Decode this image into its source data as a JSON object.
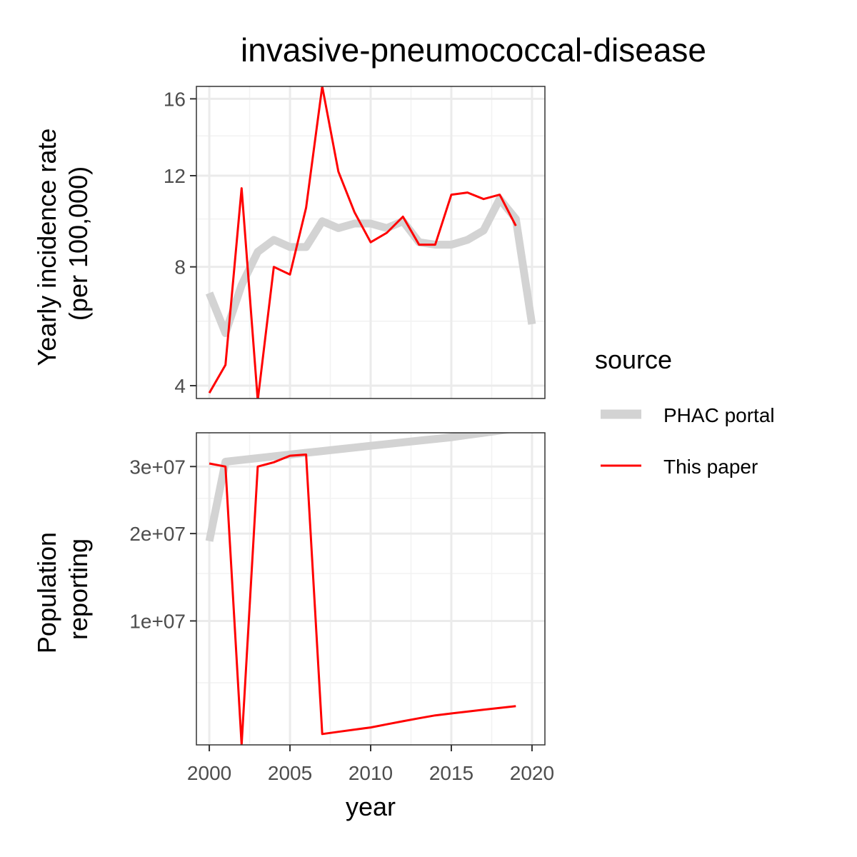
{
  "chart_data": {
    "type": "line",
    "title": "invasive-pneumococcal-disease",
    "xlabel": "year",
    "x_ticks": [
      2000,
      2005,
      2010,
      2015,
      2020
    ],
    "xlim": [
      1999.2,
      2020.8
    ],
    "legend": {
      "title": "source",
      "placement": "right",
      "entries": [
        {
          "label": "PHAC portal",
          "color": "#d3d3d3"
        },
        {
          "label": "This paper",
          "color": "#ff0000"
        }
      ]
    },
    "panels": [
      {
        "ylabel_lines": [
          "Yearly incidence rate",
          "(per 100,000)"
        ],
        "y_scale": "sqrt",
        "ylim": [
          3.65,
          16.7
        ],
        "y_ticks": [
          4,
          8,
          12,
          16
        ],
        "y_tick_labels": [
          "4",
          "8",
          "12",
          "16"
        ],
        "y_minor": [
          6,
          10,
          14
        ],
        "series": [
          {
            "name": "PHAC portal",
            "color": "#d3d3d3",
            "x": [
              2000,
              2001,
              2002,
              2003,
              2004,
              2005,
              2006,
              2007,
              2008,
              2009,
              2010,
              2011,
              2012,
              2013,
              2014,
              2015,
              2016,
              2017,
              2018,
              2019,
              2020
            ],
            "values": [
              7.0,
              5.6,
              7.3,
              8.6,
              9.1,
              8.8,
              8.8,
              9.9,
              9.6,
              9.8,
              9.8,
              9.6,
              9.9,
              9.0,
              8.9,
              8.9,
              9.1,
              9.5,
              10.9,
              10.0,
              5.9
            ]
          },
          {
            "name": "This paper",
            "color": "#ff0000",
            "x": [
              2000,
              2001,
              2002,
              2003,
              2004,
              2005,
              2006,
              2007,
              2008,
              2009,
              2010,
              2011,
              2012,
              2013,
              2014,
              2015,
              2016,
              2017,
              2018,
              2019
            ],
            "values": [
              3.8,
              4.6,
              11.4,
              3.6,
              8.0,
              7.7,
              10.5,
              16.7,
              12.2,
              10.3,
              9.0,
              9.4,
              10.1,
              8.9,
              8.9,
              11.1,
              11.2,
              10.9,
              11.1,
              9.7
            ]
          }
        ]
      },
      {
        "ylabel_lines": [
          "Population",
          "reporting"
        ],
        "y_scale": "sqrt",
        "ylim": [
          1700000,
          35800000
        ],
        "y_ticks": [
          10000000,
          20000000,
          30000000
        ],
        "y_tick_labels": [
          "1e+07",
          "2e+07",
          "3e+07"
        ],
        "y_minor": [
          5000000,
          15000000,
          25000000
        ],
        "series": [
          {
            "name": "PHAC portal",
            "color": "#d3d3d3",
            "x": [
              2000,
              2001,
              2002,
              2003,
              2004,
              2005,
              2006,
              2007,
              2008,
              2009,
              2010,
              2011,
              2012,
              2013,
              2014,
              2015,
              2016,
              2017,
              2018,
              2019,
              2020
            ],
            "values": [
              19000000,
              30800000,
              31100000,
              31400000,
              31700000,
              32000000,
              32300000,
              32600000,
              32900000,
              33200000,
              33500000,
              33800000,
              34100000,
              34400000,
              34700000,
              35000000,
              35400000,
              35800000,
              36200000,
              36600000,
              37000000
            ]
          },
          {
            "name": "This paper",
            "color": "#ff0000",
            "x": [
              2000,
              2001,
              2002,
              2003,
              2004,
              2005,
              2006,
              2007,
              2008,
              2009,
              2010,
              2011,
              2012,
              2013,
              2014,
              2015,
              2016,
              2017,
              2018,
              2019
            ],
            "values": [
              30500000,
              30000000,
              1700000,
              30000000,
              30700000,
              31800000,
              32000000,
              2150000,
              2250000,
              2350000,
              2450000,
              2600000,
              2750000,
              2900000,
              3050000,
              3150000,
              3250000,
              3350000,
              3450000,
              3550000
            ]
          }
        ]
      }
    ]
  }
}
